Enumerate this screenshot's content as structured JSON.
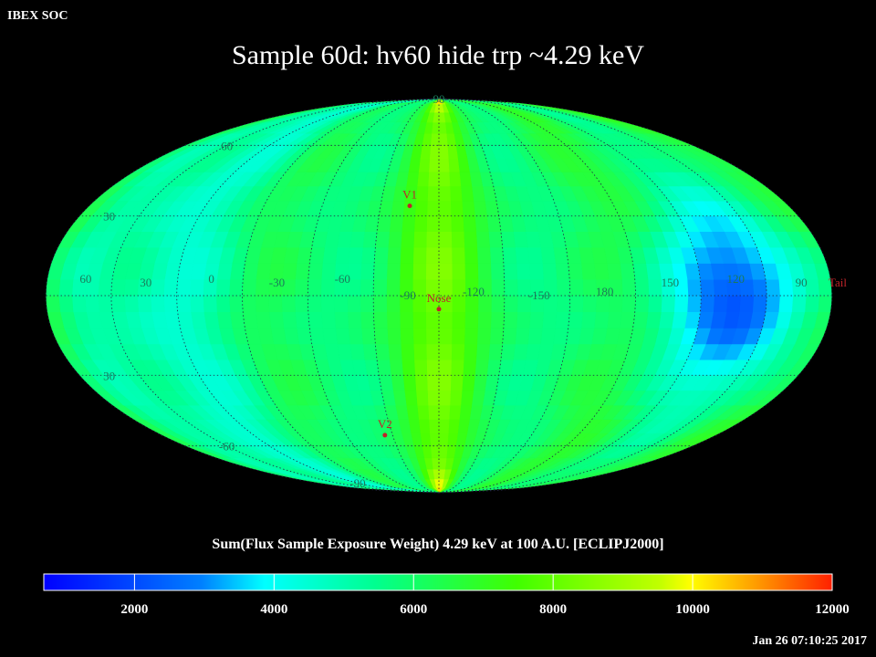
{
  "header": {
    "source": "IBEX SOC",
    "title": "Sample 60d: hv60 hide trp ~4.29 keV"
  },
  "map": {
    "projection": "Mollweide",
    "lat_labels": [
      "90",
      "60",
      "30",
      "30",
      "-60",
      "-90"
    ],
    "lon_labels": [
      "60",
      "30",
      "0",
      "-30",
      "-60",
      "-90",
      "-120",
      "-150",
      "180",
      "150",
      "120",
      "90"
    ],
    "markers": [
      {
        "label": "V1",
        "lon": -90,
        "lat": 34
      },
      {
        "label": "Nose",
        "lon": -105,
        "lat": -5
      },
      {
        "label": "V2",
        "lon": -70,
        "lat": -55
      },
      {
        "label": "Tail",
        "lon": 75,
        "lat": 5
      }
    ],
    "colors": {
      "marker": "#c0242a",
      "grid_label": "#1a7a5a"
    }
  },
  "colorbar": {
    "title": "Sum(Flux Sample Exposure Weight)  4.29 keV at 100 A.U. [ECLIPJ2000]",
    "min": 700,
    "max": 12000,
    "ticks": [
      "2000",
      "4000",
      "6000",
      "8000",
      "10000",
      "12000"
    ]
  },
  "footer": {
    "timestamp": "Jan 26 07:10:25 2017"
  }
}
